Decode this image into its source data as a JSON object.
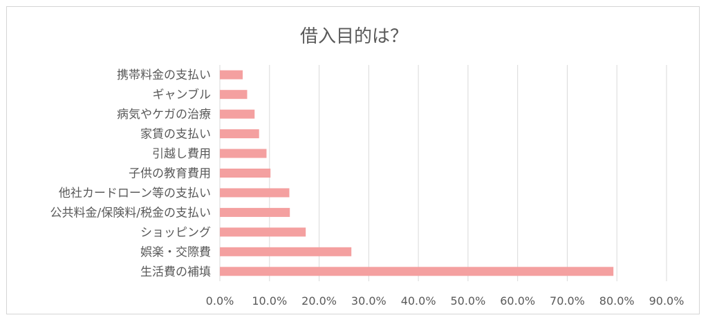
{
  "chart_data": {
    "type": "bar",
    "orientation": "horizontal",
    "title": "借入目的は？",
    "categories": [
      "携帯料金の支払い",
      "ギャンブル",
      "病気やケガの治療",
      "家賃の支払い",
      "引越し費用",
      "子供の教育費用",
      "他社カードローン等の支払い",
      "公共料金/保険料/税金の支払い",
      "ショッピング",
      "娯楽・交際費",
      "生活費の補填"
    ],
    "values": [
      4.6,
      5.5,
      7.0,
      7.9,
      9.4,
      10.2,
      14.0,
      14.1,
      17.3,
      26.5,
      79.3
    ],
    "xlim": [
      0,
      90
    ],
    "x_ticks": [
      "0.0%",
      "10.0%",
      "20.0%",
      "30.0%",
      "40.0%",
      "50.0%",
      "60.0%",
      "70.0%",
      "80.0%",
      "90.0%"
    ],
    "x_unit": "%",
    "grid": true,
    "legend": "none",
    "colors": {
      "bar": "#f4a0a0",
      "grid": "#d9d9d9",
      "text": "#595959",
      "border": "#d4d4d4"
    }
  }
}
